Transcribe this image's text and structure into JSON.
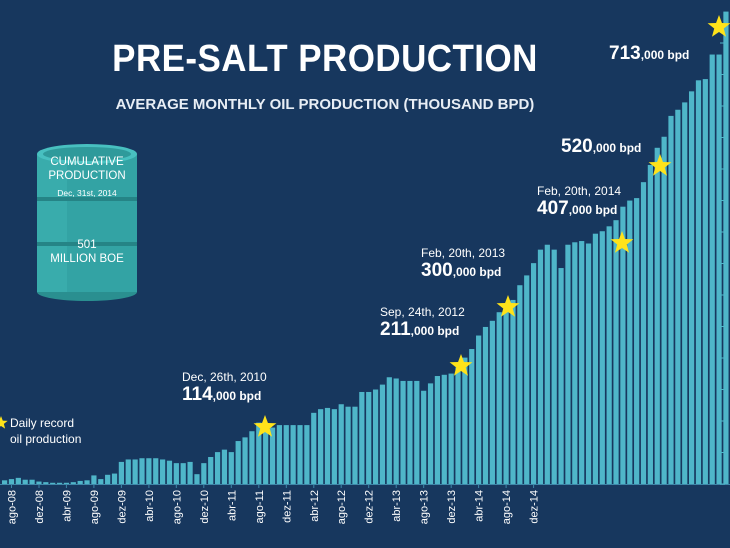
{
  "title": "PRE-SALT PRODUCTION",
  "subtitle": "AVERAGE MONTHLY OIL PRODUCTION (THOUSAND BPD)",
  "barrel": {
    "line1": "CUMULATIVE",
    "line2": "PRODUCTION",
    "date": "Dec, 31st, 2014",
    "value": "501",
    "unit": "MILLION BOE"
  },
  "legend": {
    "line1": "Daily record",
    "line2": "oil production"
  },
  "annotations": [
    {
      "date": "Dec, 26th, 2010",
      "big": "114",
      "small": ",000 bpd"
    },
    {
      "date": "Sep, 24th, 2012",
      "big": "211",
      "small": ",000 bpd"
    },
    {
      "date": "Feb, 20th, 2013",
      "big": "300",
      "small": ",000 bpd"
    },
    {
      "date": "Feb, 20th, 2014",
      "big": "407",
      "small": ",000 bpd"
    },
    {
      "date": "",
      "big": "520",
      "small": ",000 bpd"
    },
    {
      "date": "",
      "big": "713",
      "small": ",000 bpd"
    }
  ],
  "colors": {
    "background": "#17375e",
    "bar": "#4fb6c9",
    "star": "#ffe31a",
    "barrel": "#33a3a4"
  },
  "chart_data": {
    "type": "bar",
    "title": "PRE-SALT PRODUCTION",
    "subtitle": "AVERAGE MONTHLY OIL PRODUCTION (THOUSAND BPD)",
    "ylim": [
      0,
      740
    ],
    "grid": false,
    "legend": "left",
    "x_tick_labels": [
      "ago-08",
      "dez-08",
      "abr-09",
      "ago-09",
      "dez-09",
      "abr-10",
      "ago-10",
      "dez-10",
      "abr-11",
      "ago-11",
      "dez-11",
      "abr-12",
      "ago-12",
      "dez-12",
      "abr-13",
      "ago-13",
      "dez-13",
      "abr-14",
      "ago-14",
      "dez-14"
    ],
    "series": [
      {
        "values": [
          6,
          8,
          10,
          7,
          7,
          4,
          3,
          2,
          2,
          2,
          3,
          5,
          6,
          14,
          8,
          15,
          17,
          36,
          40,
          40,
          42,
          42,
          42,
          40,
          38,
          34,
          34,
          36,
          16,
          34,
          44,
          52,
          56,
          52,
          70,
          76,
          86,
          100,
          98,
          92,
          96,
          96,
          96,
          96,
          96,
          116,
          122,
          124,
          122,
          130,
          126,
          126,
          150,
          150,
          154,
          162,
          174,
          172,
          168,
          168,
          168,
          152,
          164,
          176,
          178,
          180,
          190,
          206,
          220,
          242,
          256,
          266,
          280,
          290,
          300,
          324,
          340,
          360,
          382,
          390,
          382,
          352,
          390,
          394,
          396,
          392,
          408,
          412,
          420,
          430,
          452,
          462,
          466,
          492,
          520,
          548,
          566,
          600,
          610,
          622,
          640,
          658,
          660,
          700,
          700,
          770
        ]
      }
    ],
    "records": [
      {
        "date": "Dec, 26th, 2010",
        "value": 114
      },
      {
        "date": "Sep, 24th, 2012",
        "value": 211
      },
      {
        "date": "Feb, 20th, 2013",
        "value": 300
      },
      {
        "date": "Feb, 20th, 2014",
        "value": 407
      },
      {
        "value": 520
      },
      {
        "value": 713
      }
    ]
  }
}
